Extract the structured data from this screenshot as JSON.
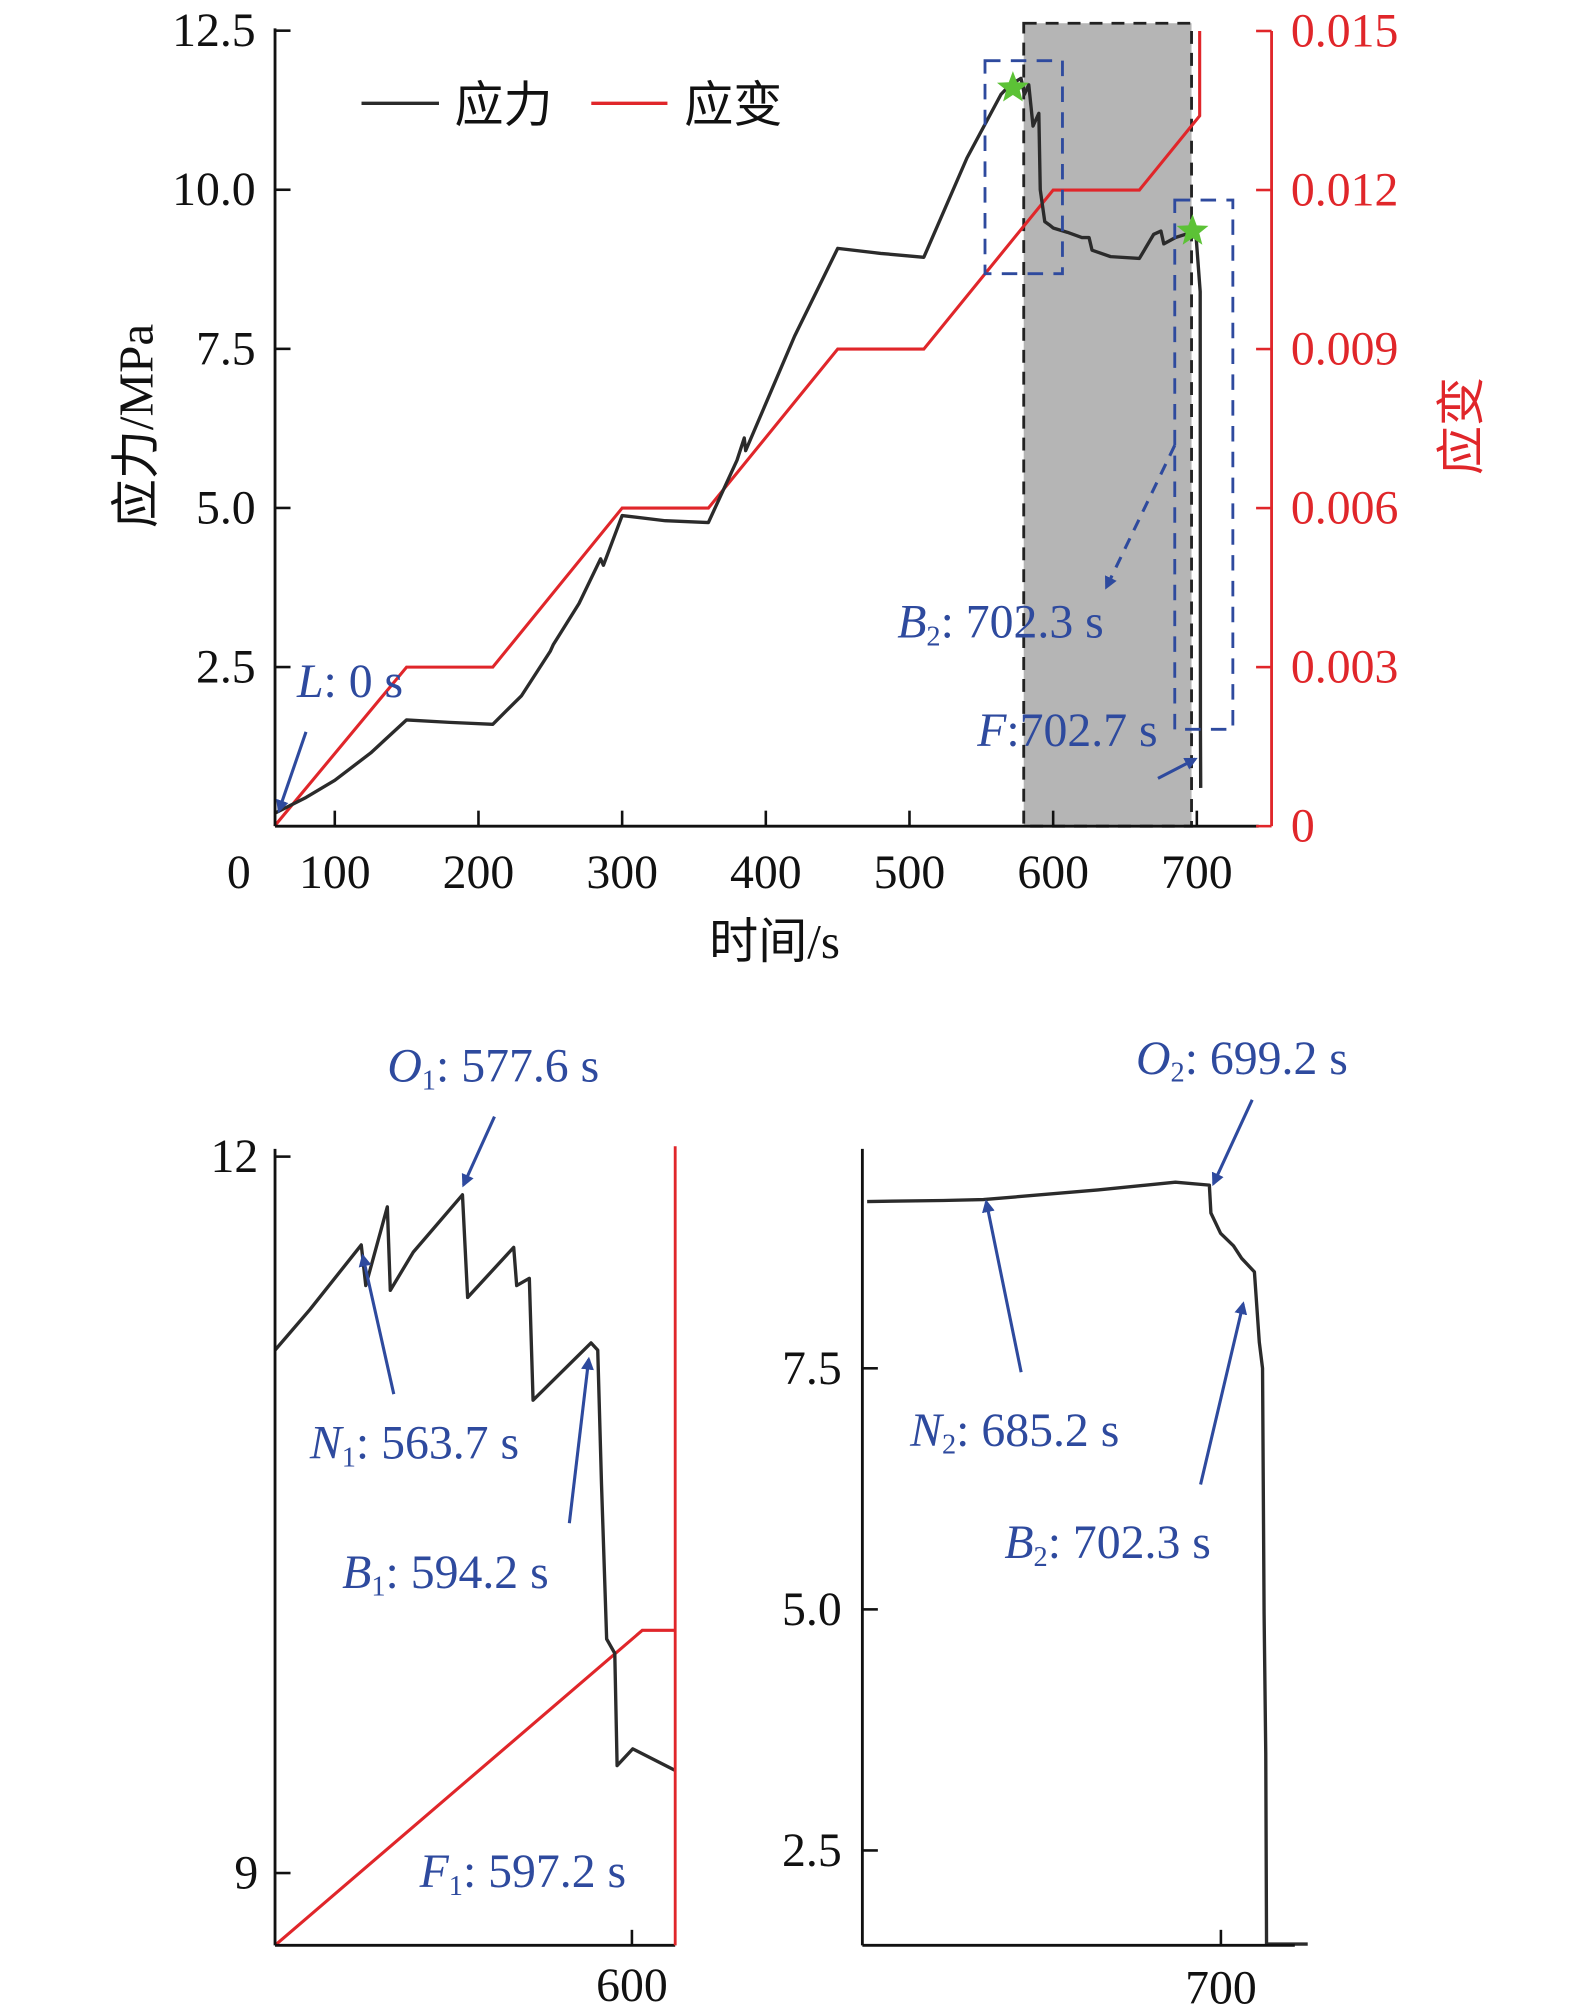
{
  "colors": {
    "stress": "#2b2b2b",
    "strain": "#e0262a",
    "annotation": "#2e4a9e",
    "highlight": "#b5b5b5",
    "star": "#5cc236"
  },
  "chart_data": [
    {
      "type": "line",
      "title": "",
      "xlabel": "时间/s",
      "ylabel": "应力/MPa",
      "y2label": "应变",
      "xlim": [
        57,
        743
      ],
      "ylim": [
        0,
        12.5
      ],
      "y2lim": [
        0,
        0.015
      ],
      "x_ticks": [
        "0",
        "100",
        "200",
        "300",
        "400",
        "500",
        "600",
        "700"
      ],
      "y_ticks": [
        "2.5",
        "5.0",
        "7.5",
        "10.0",
        "12.5"
      ],
      "y2_ticks": [
        "0",
        "0.003",
        "0.006",
        "0.009",
        "0.012",
        "0.015"
      ],
      "legend": {
        "placement": "top-left",
        "entries": [
          "应力",
          "应变"
        ]
      },
      "highlight_region": [
        580,
        698
      ],
      "stars": [
        [
          572,
          11.6
        ],
        [
          697,
          9.35
        ]
      ],
      "series": [
        {
          "name": "应力",
          "axis": "left",
          "points": [
            [
              58,
              0.2
            ],
            [
              80,
              0.45
            ],
            [
              100,
              0.72
            ],
            [
              125,
              1.15
            ],
            [
              150,
              1.67
            ],
            [
              180,
              1.63
            ],
            [
              210,
              1.6
            ],
            [
              230,
              2.05
            ],
            [
              250,
              2.75
            ],
            [
              252,
              2.85
            ],
            [
              270,
              3.5
            ],
            [
              285,
              4.2
            ],
            [
              287,
              4.1
            ],
            [
              300,
              4.88
            ],
            [
              330,
              4.8
            ],
            [
              360,
              4.77
            ],
            [
              380,
              5.75
            ],
            [
              385,
              6.1
            ],
            [
              386,
              5.9
            ],
            [
              420,
              7.7
            ],
            [
              450,
              9.08
            ],
            [
              480,
              9.0
            ],
            [
              510,
              8.94
            ],
            [
              540,
              10.5
            ],
            [
              563.7,
              11.5
            ],
            [
              570,
              11.65
            ],
            [
              577.6,
              11.75
            ],
            [
              580,
              11.5
            ],
            [
              583,
              11.65
            ],
            [
              586,
              11.0
            ],
            [
              590,
              11.2
            ],
            [
              591,
              10.0
            ],
            [
              594.2,
              9.5
            ],
            [
              597.2,
              9.45
            ],
            [
              600,
              9.4
            ],
            [
              610,
              9.33
            ],
            [
              620,
              9.25
            ],
            [
              625,
              9.25
            ],
            [
              627,
              9.05
            ],
            [
              640,
              8.95
            ],
            [
              660,
              8.92
            ],
            [
              670,
              9.3
            ],
            [
              675,
              9.35
            ],
            [
              677,
              9.15
            ],
            [
              685.2,
              9.25
            ],
            [
              699.2,
              9.35
            ],
            [
              702.3,
              8.4
            ],
            [
              702.5,
              1.5
            ],
            [
              702.7,
              0.6
            ]
          ]
        },
        {
          "name": "应变",
          "axis": "right",
          "points": [
            [
              58,
              0
            ],
            [
              150,
              0.003
            ],
            [
              210,
              0.003
            ],
            [
              300,
              0.006
            ],
            [
              360,
              0.006
            ],
            [
              450,
              0.009
            ],
            [
              510,
              0.009
            ],
            [
              600,
              0.012
            ],
            [
              660,
              0.012
            ],
            [
              702,
              0.0134
            ],
            [
              702,
              0.015
            ]
          ]
        }
      ],
      "annotations": [
        {
          "letter": "L",
          "sub": "",
          "rest": ": 0 s"
        },
        {
          "letter": "B",
          "sub": "2",
          "rest": ": 702.3 s"
        },
        {
          "letter": "F",
          "sub": "",
          "rest": ":702.7 s"
        }
      ]
    },
    {
      "type": "line",
      "xlim": [
        552,
        606
      ],
      "ylim": [
        8.69,
        12.03
      ],
      "x_ticks": [
        "600"
      ],
      "y_ticks": [
        "9",
        "12"
      ],
      "series": [
        {
          "name": "应力",
          "points": [
            [
              552,
              11.19
            ],
            [
              556.7,
              11.36
            ],
            [
              563.6,
              11.63
            ],
            [
              564.2,
              11.46
            ],
            [
              567.1,
              11.79
            ],
            [
              567.5,
              11.44
            ],
            [
              570.6,
              11.6
            ],
            [
              577.2,
              11.84
            ],
            [
              577.9,
              11.41
            ],
            [
              584.1,
              11.62
            ],
            [
              584.5,
              11.46
            ],
            [
              586.2,
              11.49
            ],
            [
              586.7,
              10.98
            ],
            [
              594.5,
              11.22
            ],
            [
              595.4,
              11.19
            ],
            [
              595.9,
              10.63
            ],
            [
              596.6,
              9.98
            ],
            [
              597.7,
              9.92
            ],
            [
              598,
              9.45
            ],
            [
              600.1,
              9.52
            ],
            [
              605.8,
              9.43
            ]
          ]
        },
        {
          "name": "应变",
          "points": [
            [
              552,
              0.0104
            ],
            [
              601.4,
              0.012
            ],
            [
              605.9,
              0.012
            ]
          ]
        }
      ],
      "annotations": [
        {
          "letter": "O",
          "sub": "1",
          "rest": ": 577.6 s"
        },
        {
          "letter": "N",
          "sub": "1",
          "rest": ": 563.7 s"
        },
        {
          "letter": "B",
          "sub": "1",
          "rest": ": 594.2 s"
        },
        {
          "letter": "F",
          "sub": "1",
          "rest": ": 597.2 s"
        }
      ]
    },
    {
      "type": "line",
      "xlim": [
        677.7,
        705.3
      ],
      "ylim": [
        1.53,
        13.2
      ],
      "x_ticks": [
        "700"
      ],
      "y_ticks": [
        "2.5",
        "5.0",
        "7.5"
      ],
      "series": [
        {
          "name": "应力",
          "points": [
            [
              678,
              9.23
            ],
            [
              682.7,
              9.24
            ],
            [
              685.2,
              9.25
            ],
            [
              692.3,
              9.35
            ],
            [
              697.1,
              9.43
            ],
            [
              699.2,
              9.4
            ],
            [
              699.3,
              9.11
            ],
            [
              699.9,
              8.9
            ],
            [
              700.7,
              8.77
            ],
            [
              701.2,
              8.64
            ],
            [
              702,
              8.5
            ],
            [
              702.3,
              7.77
            ],
            [
              702.5,
              7.5
            ],
            [
              702.6,
              4.96
            ],
            [
              702.7,
              3.5
            ],
            [
              702.75,
              1.53
            ],
            [
              705.3,
              1.53
            ]
          ]
        }
      ],
      "annotations": [
        {
          "letter": "O",
          "sub": "2",
          "rest": ": 699.2 s"
        },
        {
          "letter": "N",
          "sub": "2",
          "rest": ": 685.2 s"
        },
        {
          "letter": "B",
          "sub": "2",
          "rest": ": 702.3 s"
        }
      ]
    }
  ]
}
